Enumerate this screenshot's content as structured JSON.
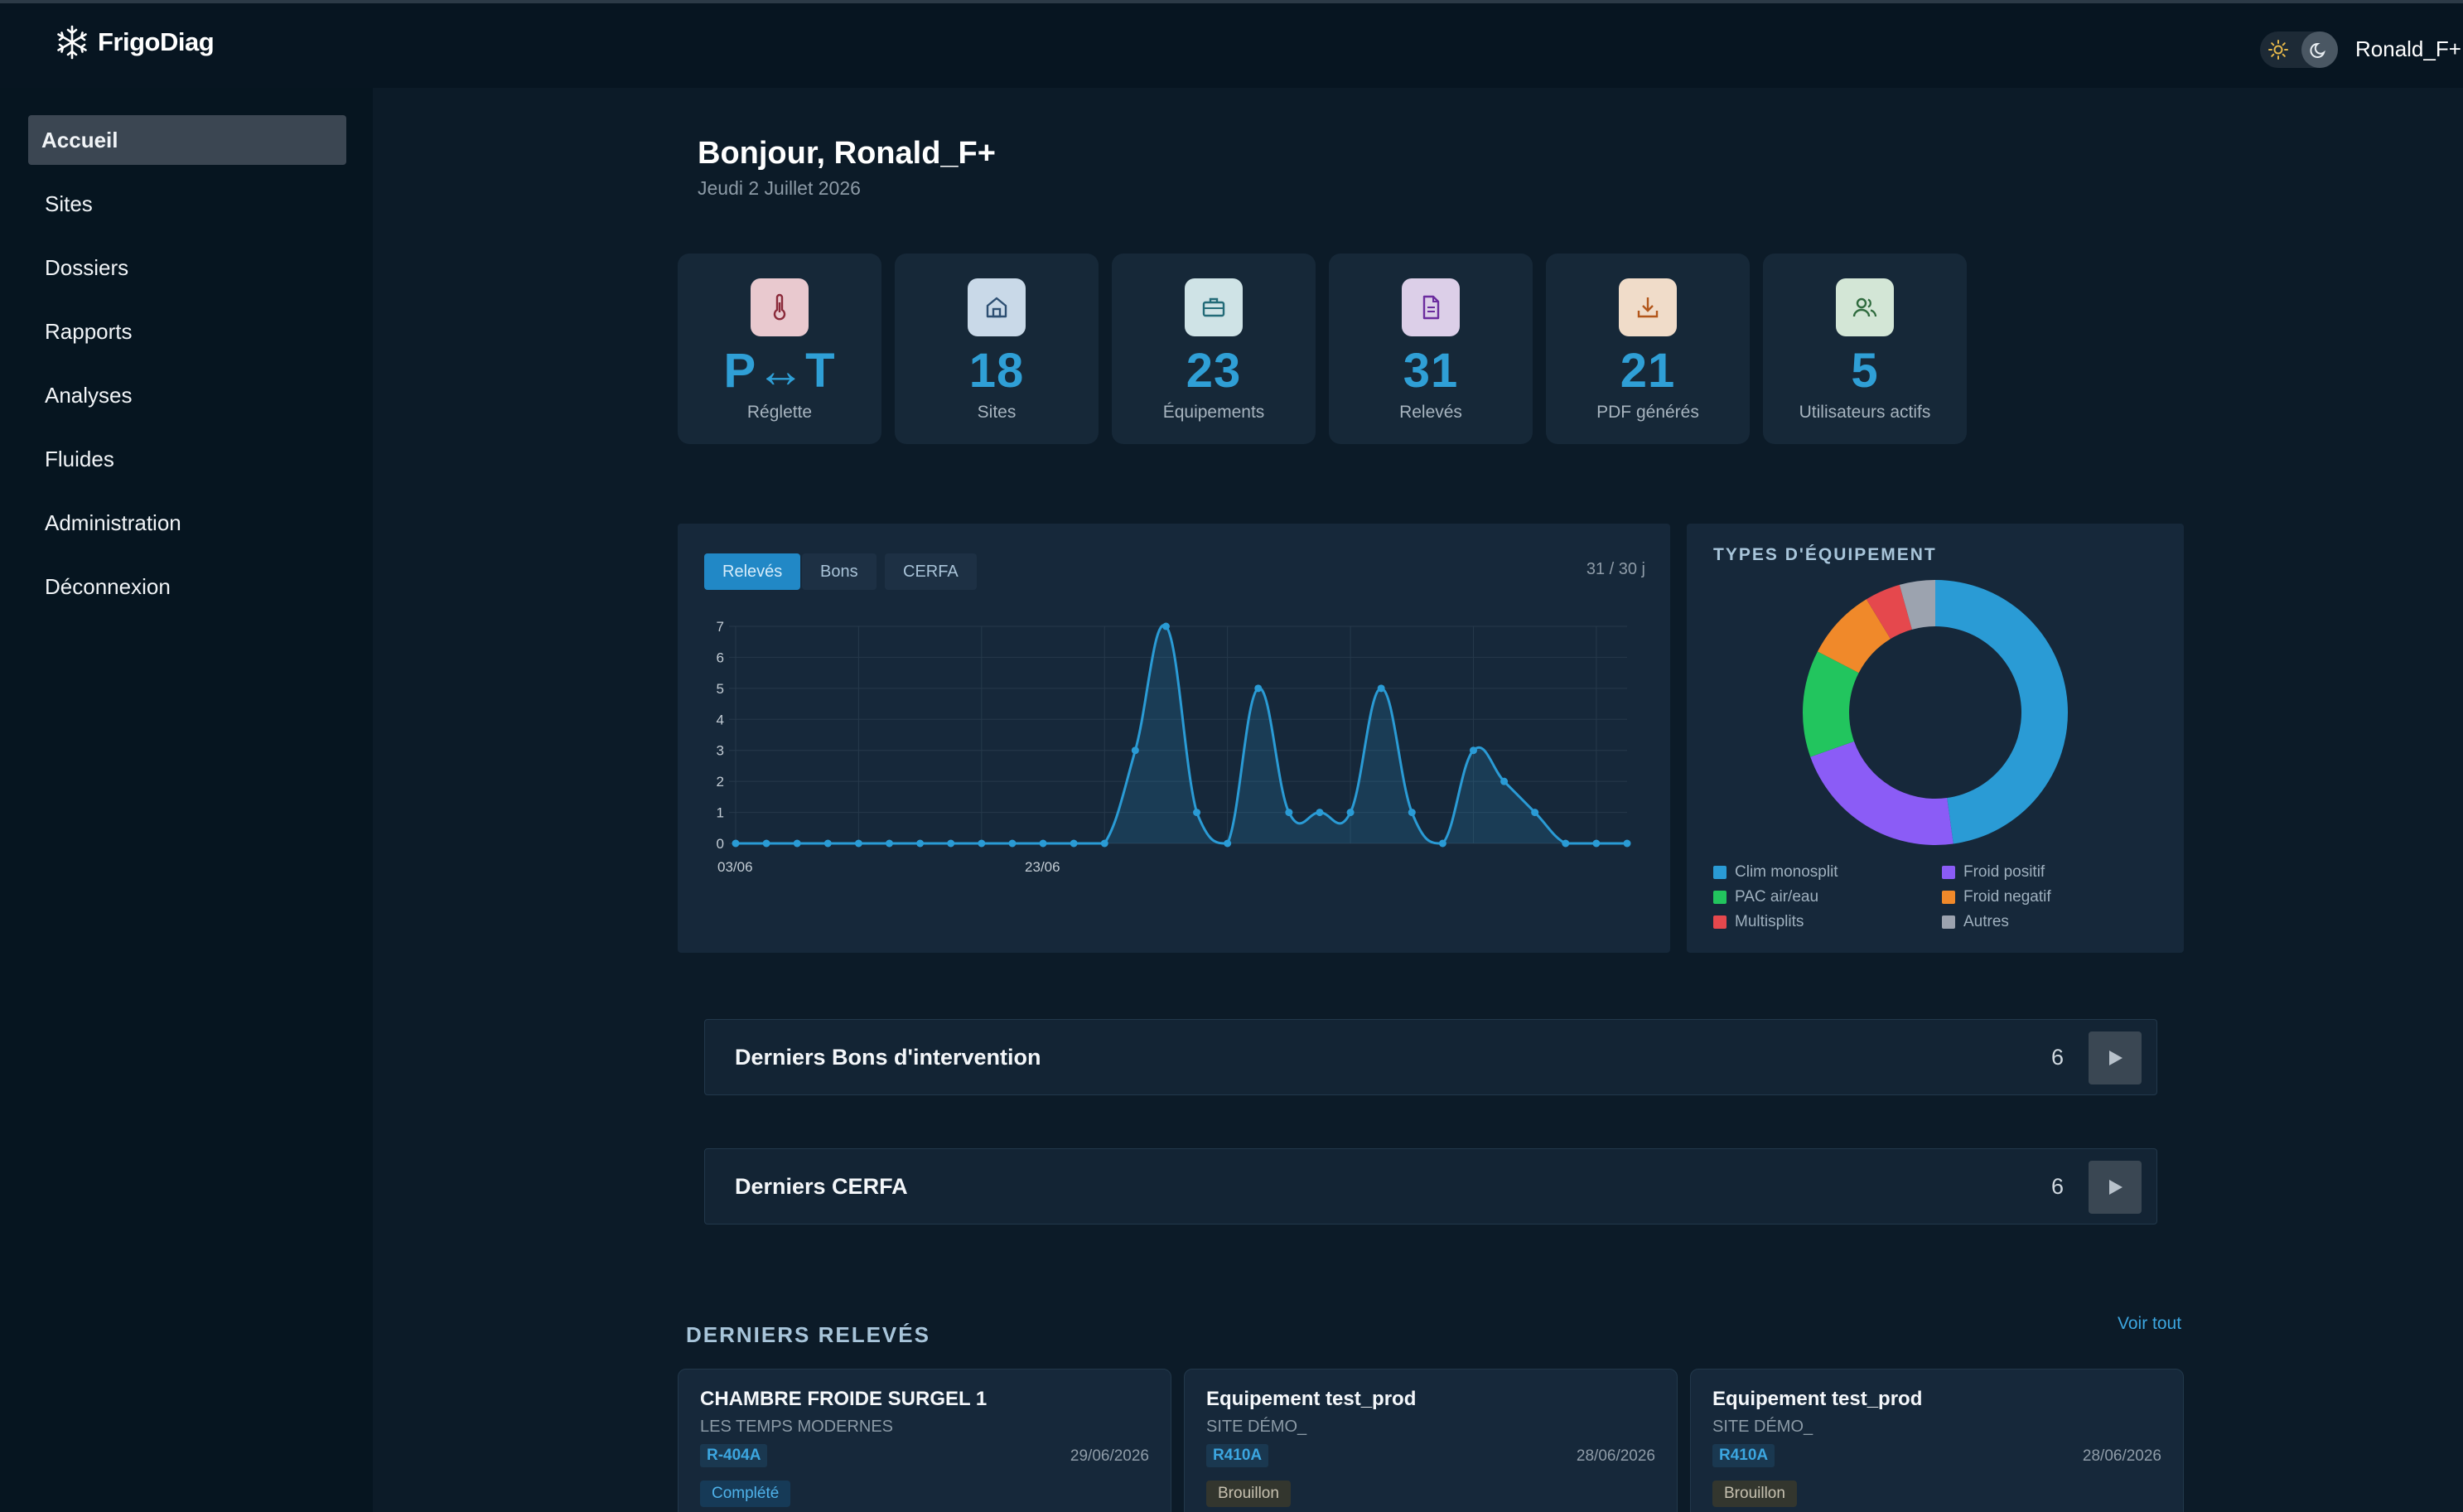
{
  "app": {
    "name": "FrigoDiag",
    "user": "Ronald_F+"
  },
  "sidebar": {
    "items": [
      {
        "label": "Accueil",
        "active": true
      },
      {
        "label": "Sites"
      },
      {
        "label": "Dossiers"
      },
      {
        "label": "Rapports"
      },
      {
        "label": "Analyses"
      },
      {
        "label": "Fluides"
      },
      {
        "label": "Administration"
      },
      {
        "label": "Déconnexion"
      }
    ]
  },
  "header": {
    "greeting": "Bonjour, Ronald_F+",
    "date": "Jeudi 2 Juillet 2026"
  },
  "stats": [
    {
      "value": "P↔T",
      "label": "Réglette",
      "icon": "thermometer-icon",
      "color": "#e9c9cf"
    },
    {
      "value": "18",
      "label": "Sites",
      "icon": "home-icon",
      "color": "#c9d9e8"
    },
    {
      "value": "23",
      "label": "Équipements",
      "icon": "briefcase-icon",
      "color": "#cfe3e6"
    },
    {
      "value": "31",
      "label": "Relevés",
      "icon": "document-icon",
      "color": "#dccfe8"
    },
    {
      "value": "21",
      "label": "PDF générés",
      "icon": "download-icon",
      "color": "#f0dcc9"
    },
    {
      "value": "5",
      "label": "Utilisateurs actifs",
      "icon": "users-icon",
      "color": "#d3e6d6"
    }
  ],
  "activity_panel": {
    "tabs": [
      "Relevés",
      "Bons",
      "CERFA"
    ],
    "active_tab": "Relevés",
    "range_label": "31 / 30 j"
  },
  "chart_data": [
    {
      "type": "area",
      "x_tick_labels": [
        "03/06",
        "23/06"
      ],
      "x": [
        "03/06",
        "04/06",
        "05/06",
        "06/06",
        "07/06",
        "08/06",
        "09/06",
        "10/06",
        "11/06",
        "12/06",
        "13/06",
        "14/06",
        "15/06",
        "16/06",
        "17/06",
        "18/06",
        "19/06",
        "20/06",
        "21/06",
        "22/06",
        "23/06",
        "24/06",
        "25/06",
        "26/06",
        "27/06",
        "28/06",
        "29/06",
        "30/06",
        "01/07",
        "02/07"
      ],
      "series": [
        {
          "values": [
            0,
            0,
            0,
            0,
            0,
            0,
            0,
            0,
            0,
            0,
            0,
            0,
            0,
            3,
            7,
            1,
            0,
            5,
            1,
            1,
            1,
            5,
            1,
            0,
            3,
            2,
            1,
            0,
            0,
            0
          ]
        }
      ],
      "ylim": [
        0,
        7
      ],
      "yticks": [
        0,
        1,
        2,
        3,
        4,
        5,
        6,
        7
      ],
      "grid": true,
      "color": "#2a9bd5"
    },
    {
      "type": "pie",
      "title": "TYPES D'ÉQUIPEMENT",
      "labels": [
        "Clim monosplit",
        "Froid positif",
        "PAC air/eau",
        "Froid negatif",
        "Multisplits",
        "Autres"
      ],
      "values": [
        11,
        5,
        3,
        2,
        1,
        1
      ],
      "colors": [
        "#2a9bd5",
        "#8b5cf6",
        "#22c55e",
        "#f0892a",
        "#e5484d",
        "#9ca3af"
      ],
      "order": [
        "Clim monosplit",
        "Froid positif",
        "PAC air/eau",
        "Froid negatif",
        "Multisplits",
        "Autres"
      ],
      "legend_position": "bottom"
    }
  ],
  "sections": {
    "bons": {
      "title": "Derniers Bons d'intervention",
      "count": "6"
    },
    "cerfa": {
      "title": "Derniers CERFA",
      "count": "6"
    },
    "releves_title": "DERNIERS RELEVÉS",
    "see_all": "Voir tout"
  },
  "recent_readings": [
    {
      "title": "CHAMBRE FROIDE SURGEL 1",
      "site": "LES TEMPS MODERNES",
      "fluid": "R-404A",
      "date": "29/06/2026",
      "status": "Complété",
      "status_kind": "done"
    },
    {
      "title": "Equipement test_prod",
      "site": "SITE DÉMO_",
      "fluid": "R410A",
      "date": "28/06/2026",
      "status": "Brouillon",
      "status_kind": "draft"
    },
    {
      "title": "Equipement test_prod",
      "site": "SITE DÉMO_",
      "fluid": "R410A",
      "date": "28/06/2026",
      "status": "Brouillon",
      "status_kind": "draft"
    }
  ]
}
